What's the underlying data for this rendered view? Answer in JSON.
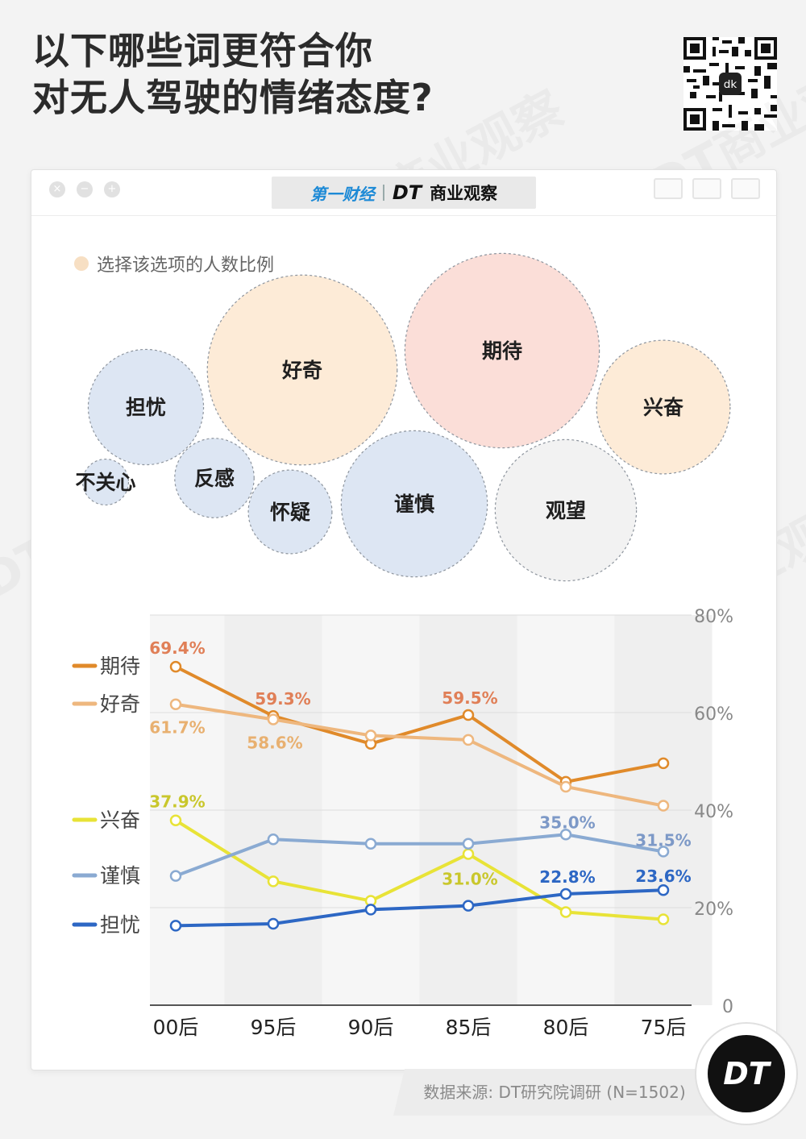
{
  "title": {
    "line1": "以下哪些词更符合你",
    "line2": "对无人驾驶的情绪态度?"
  },
  "window": {
    "brand_yicai": "第一财经",
    "brand_dt": "DT",
    "brand_name": "商业观察"
  },
  "watermark_text": "DT商业观察",
  "source": "数据来源: DT研究院调研 (N=1502)",
  "logo_text": "DT",
  "chart_data": [
    {
      "type": "bubble",
      "legend": "选择该选项的人数比例",
      "colors": {
        "warm": "#fdebd7",
        "peach": "#fbded8",
        "blue": "#dde6f3",
        "gray": "#f2f2f2"
      },
      "bubbles": [
        {
          "label": "不关心",
          "size": 0.6,
          "group": "blue"
        },
        {
          "label": "担忧",
          "size": 3.8,
          "group": "blue"
        },
        {
          "label": "反感",
          "size": 1.8,
          "group": "blue"
        },
        {
          "label": "怀疑",
          "size": 2.0,
          "group": "blue"
        },
        {
          "label": "好奇",
          "size": 10.3,
          "group": "warm"
        },
        {
          "label": "谨慎",
          "size": 6.1,
          "group": "blue"
        },
        {
          "label": "期待",
          "size": 10.8,
          "group": "peach"
        },
        {
          "label": "观望",
          "size": 5.7,
          "group": "gray"
        },
        {
          "label": "兴奋",
          "size": 5.1,
          "group": "warm"
        }
      ]
    },
    {
      "type": "line",
      "categories": [
        "00后",
        "95后",
        "90后",
        "85后",
        "80后",
        "75后"
      ],
      "ylim": [
        0,
        80
      ],
      "yticks": [
        "0",
        "20%",
        "40%",
        "60%",
        "80%"
      ],
      "grid": true,
      "legend_position": "left",
      "series": [
        {
          "name": "期待",
          "color": "#e08a2a",
          "label_color": "#e07f57",
          "values": [
            69.4,
            59.3,
            53.6,
            59.5,
            45.8,
            49.6
          ],
          "labels": {
            "0": "69.4%",
            "1": "59.3%",
            "3": "59.5%"
          }
        },
        {
          "name": "好奇",
          "color": "#eeb77e",
          "label_color": "#e8b070",
          "values": [
            61.7,
            58.6,
            55.3,
            54.4,
            44.8,
            40.9
          ],
          "labels": {
            "0": "61.7%",
            "1": "58.6%"
          }
        },
        {
          "name": "兴奋",
          "color": "#e8e337",
          "label_color": "#c9c72c",
          "values": [
            37.9,
            25.4,
            21.4,
            31.0,
            19.1,
            17.6
          ],
          "labels": {
            "0": "37.9%",
            "3": "31.0%"
          }
        },
        {
          "name": "谨慎",
          "color": "#8aaad2",
          "label_color": "#7d99c7",
          "values": [
            26.5,
            34.0,
            33.1,
            33.1,
            35.0,
            31.5
          ],
          "labels": {
            "4": "35.0%",
            "5": "31.5%"
          }
        },
        {
          "name": "担忧",
          "color": "#2d67c4",
          "label_color": "#2d67c4",
          "values": [
            16.3,
            16.7,
            19.6,
            20.4,
            22.8,
            23.6
          ],
          "labels": {
            "4": "22.8%",
            "5": "23.6%"
          }
        }
      ]
    }
  ]
}
